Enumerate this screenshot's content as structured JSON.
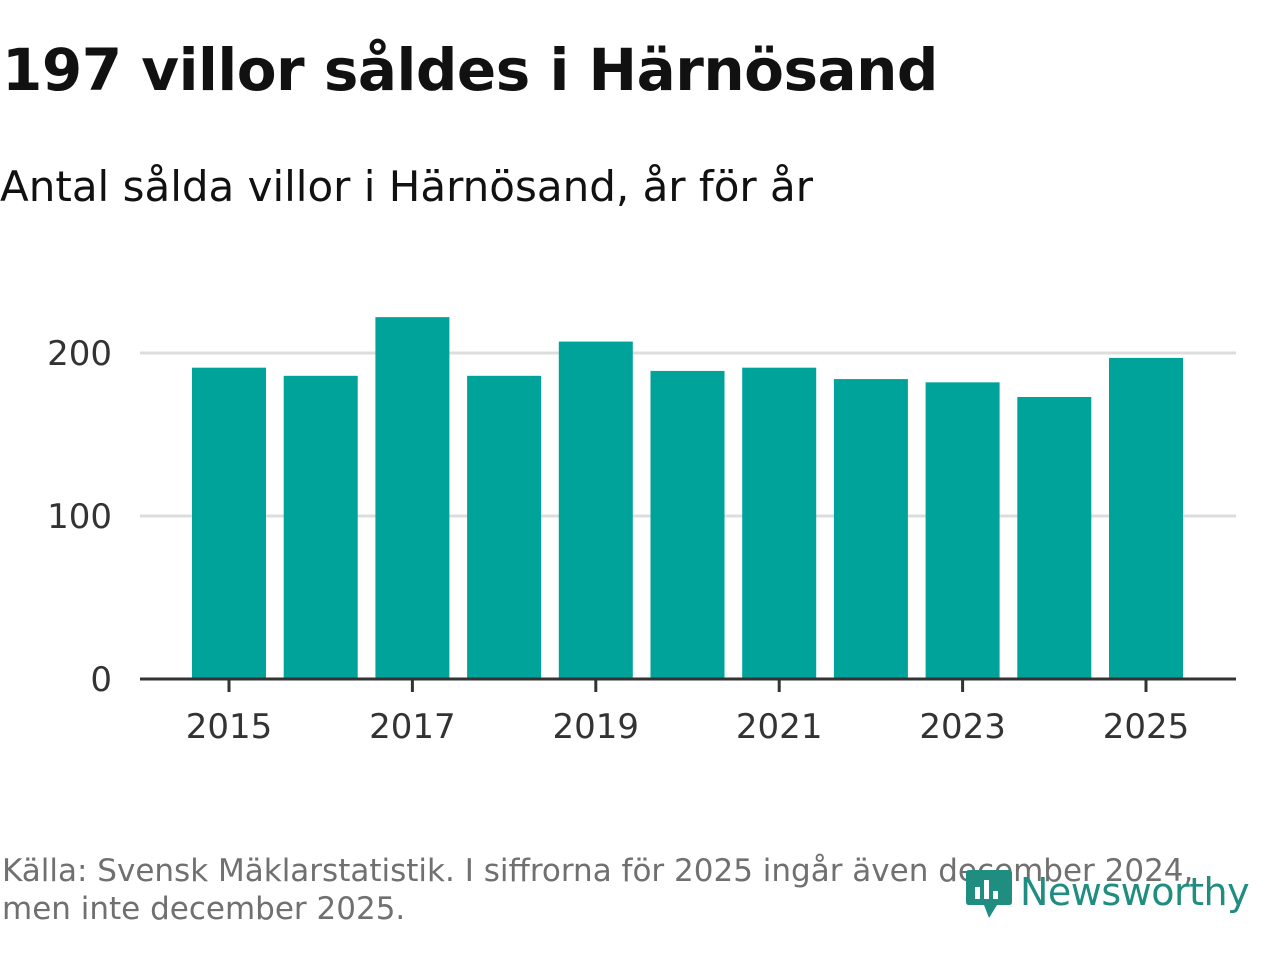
{
  "header": {
    "title": "197 villor såldes i Härnösand",
    "subtitle": "Antal sålda villor i Härnösand, år för år"
  },
  "chart_data": {
    "type": "bar",
    "categories": [
      "2015",
      "2016",
      "2017",
      "2018",
      "2019",
      "2020",
      "2021",
      "2022",
      "2023",
      "2024",
      "2025"
    ],
    "values": [
      191,
      186,
      222,
      186,
      207,
      189,
      191,
      184,
      182,
      173,
      197
    ],
    "x_tick_labels": [
      "2015",
      "2017",
      "2019",
      "2021",
      "2023",
      "2025"
    ],
    "y_ticks": [
      0,
      100,
      200
    ],
    "ylim": [
      0,
      230
    ],
    "xlabel": "",
    "ylabel": "",
    "grid": true,
    "bar_color": "#00a39a"
  },
  "footer": {
    "source": "Källa: Svensk Mäklarstatistik. I siffrorna för 2025 ingår även december 2024, men inte december 2025.",
    "brand": "Newsworthy",
    "brand_color": "#1f8d80"
  }
}
